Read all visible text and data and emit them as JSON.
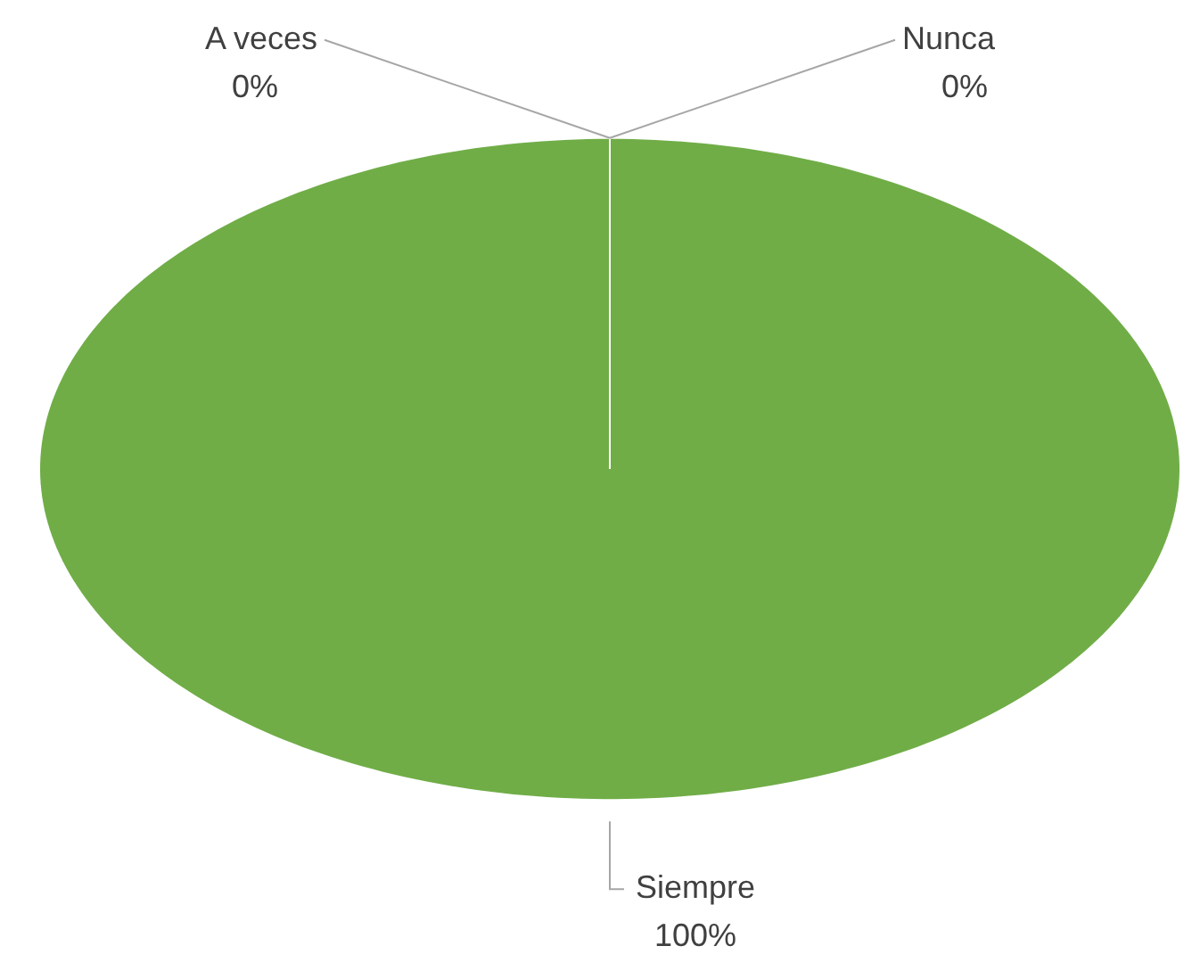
{
  "chart_data": {
    "type": "pie",
    "categories": [
      "Siempre",
      "A veces",
      "Nunca"
    ],
    "values": [
      100,
      0,
      0
    ],
    "colors": [
      "#70ad47",
      "#ed7d31",
      "#a5a5a5"
    ],
    "legend": false,
    "value_labels": [
      "100%",
      "0%",
      "0%"
    ]
  }
}
